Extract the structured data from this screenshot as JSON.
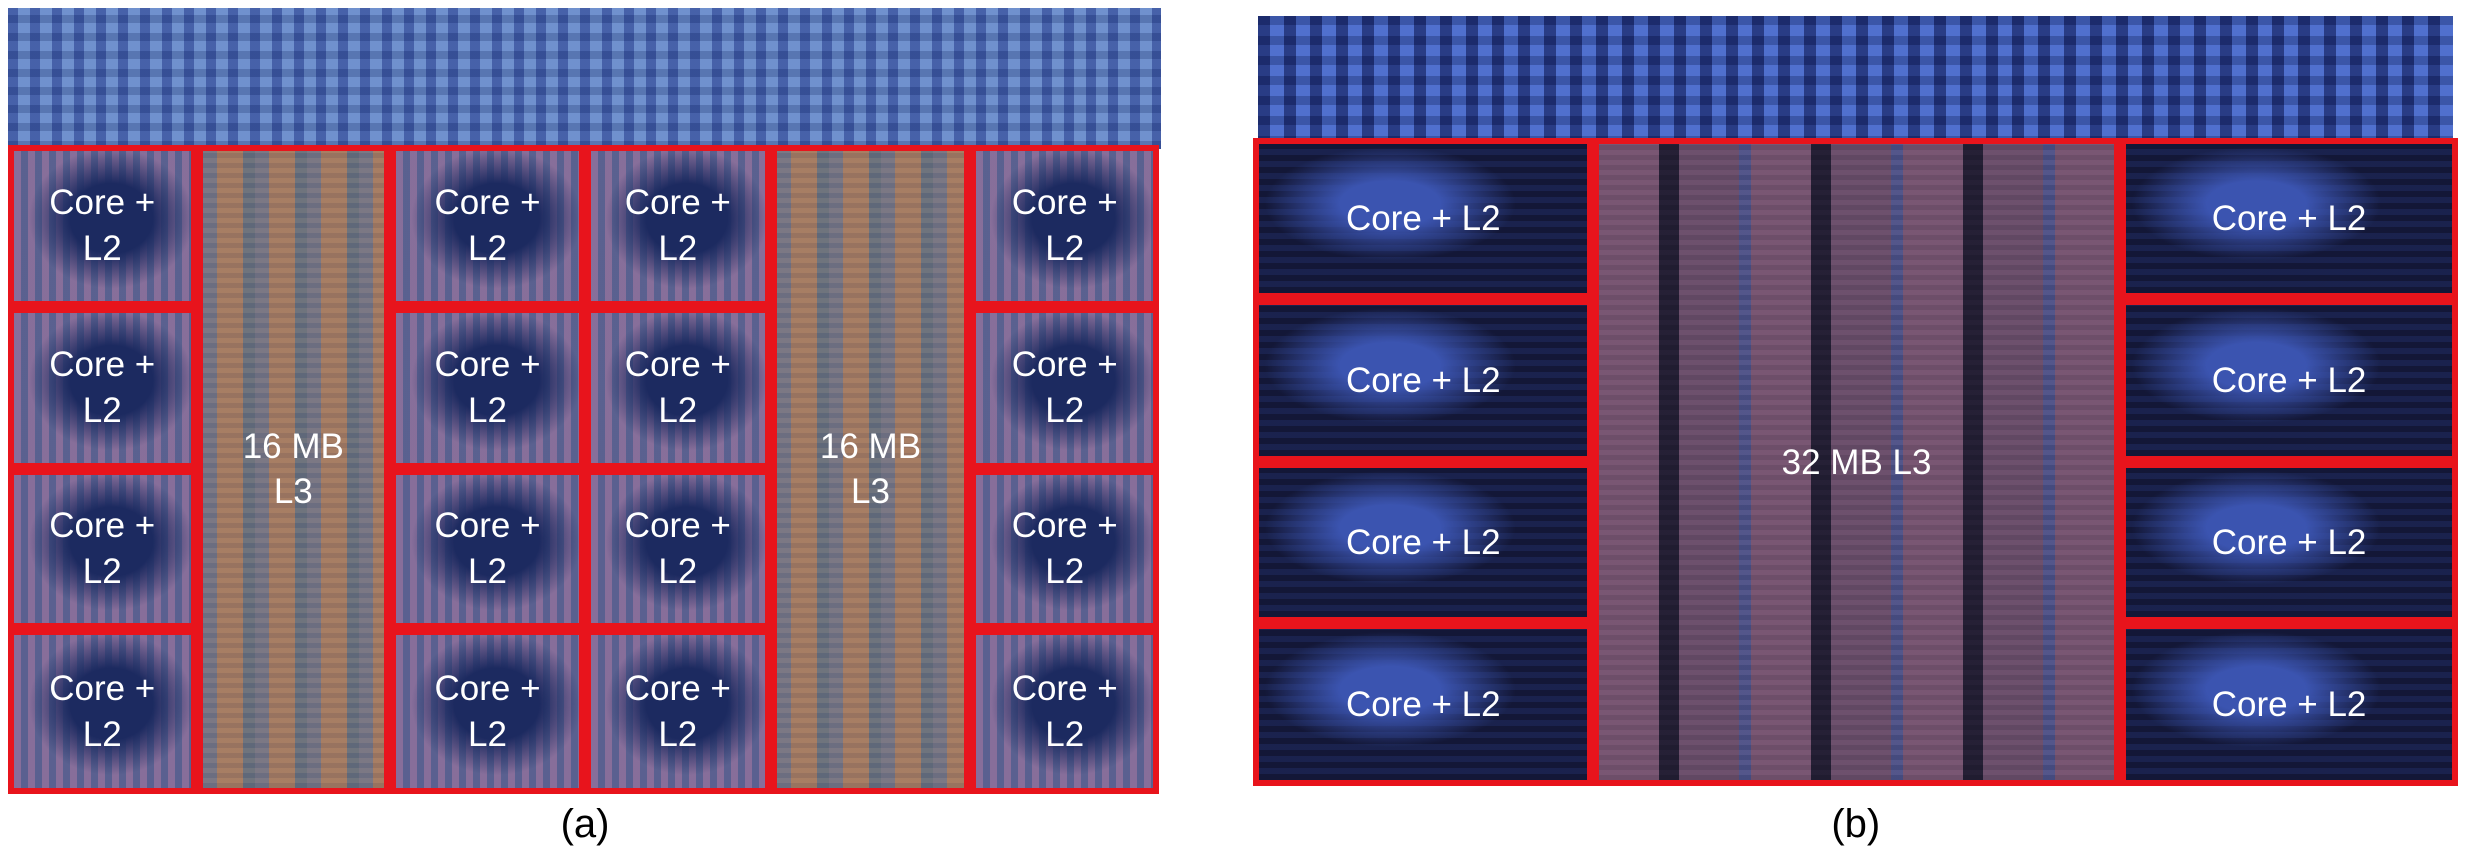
{
  "panel_a": {
    "cores": [
      "Core + L2",
      "Core + L2",
      "Core + L2",
      "Core + L2",
      "Core + L2",
      "Core + L2",
      "Core + L2",
      "Core + L2",
      "Core + L2",
      "Core + L2",
      "Core + L2",
      "Core + L2",
      "Core + L2",
      "Core + L2",
      "Core + L2",
      "Core + L2"
    ],
    "l3": [
      "16 MB L3",
      "16 MB L3"
    ],
    "caption": "(a)"
  },
  "panel_b": {
    "cores": [
      "Core + L2",
      "Core + L2",
      "Core + L2",
      "Core + L2",
      "Core + L2",
      "Core + L2",
      "Core + L2",
      "Core + L2"
    ],
    "l3": [
      "32 MB L3"
    ],
    "caption": "(b)"
  }
}
